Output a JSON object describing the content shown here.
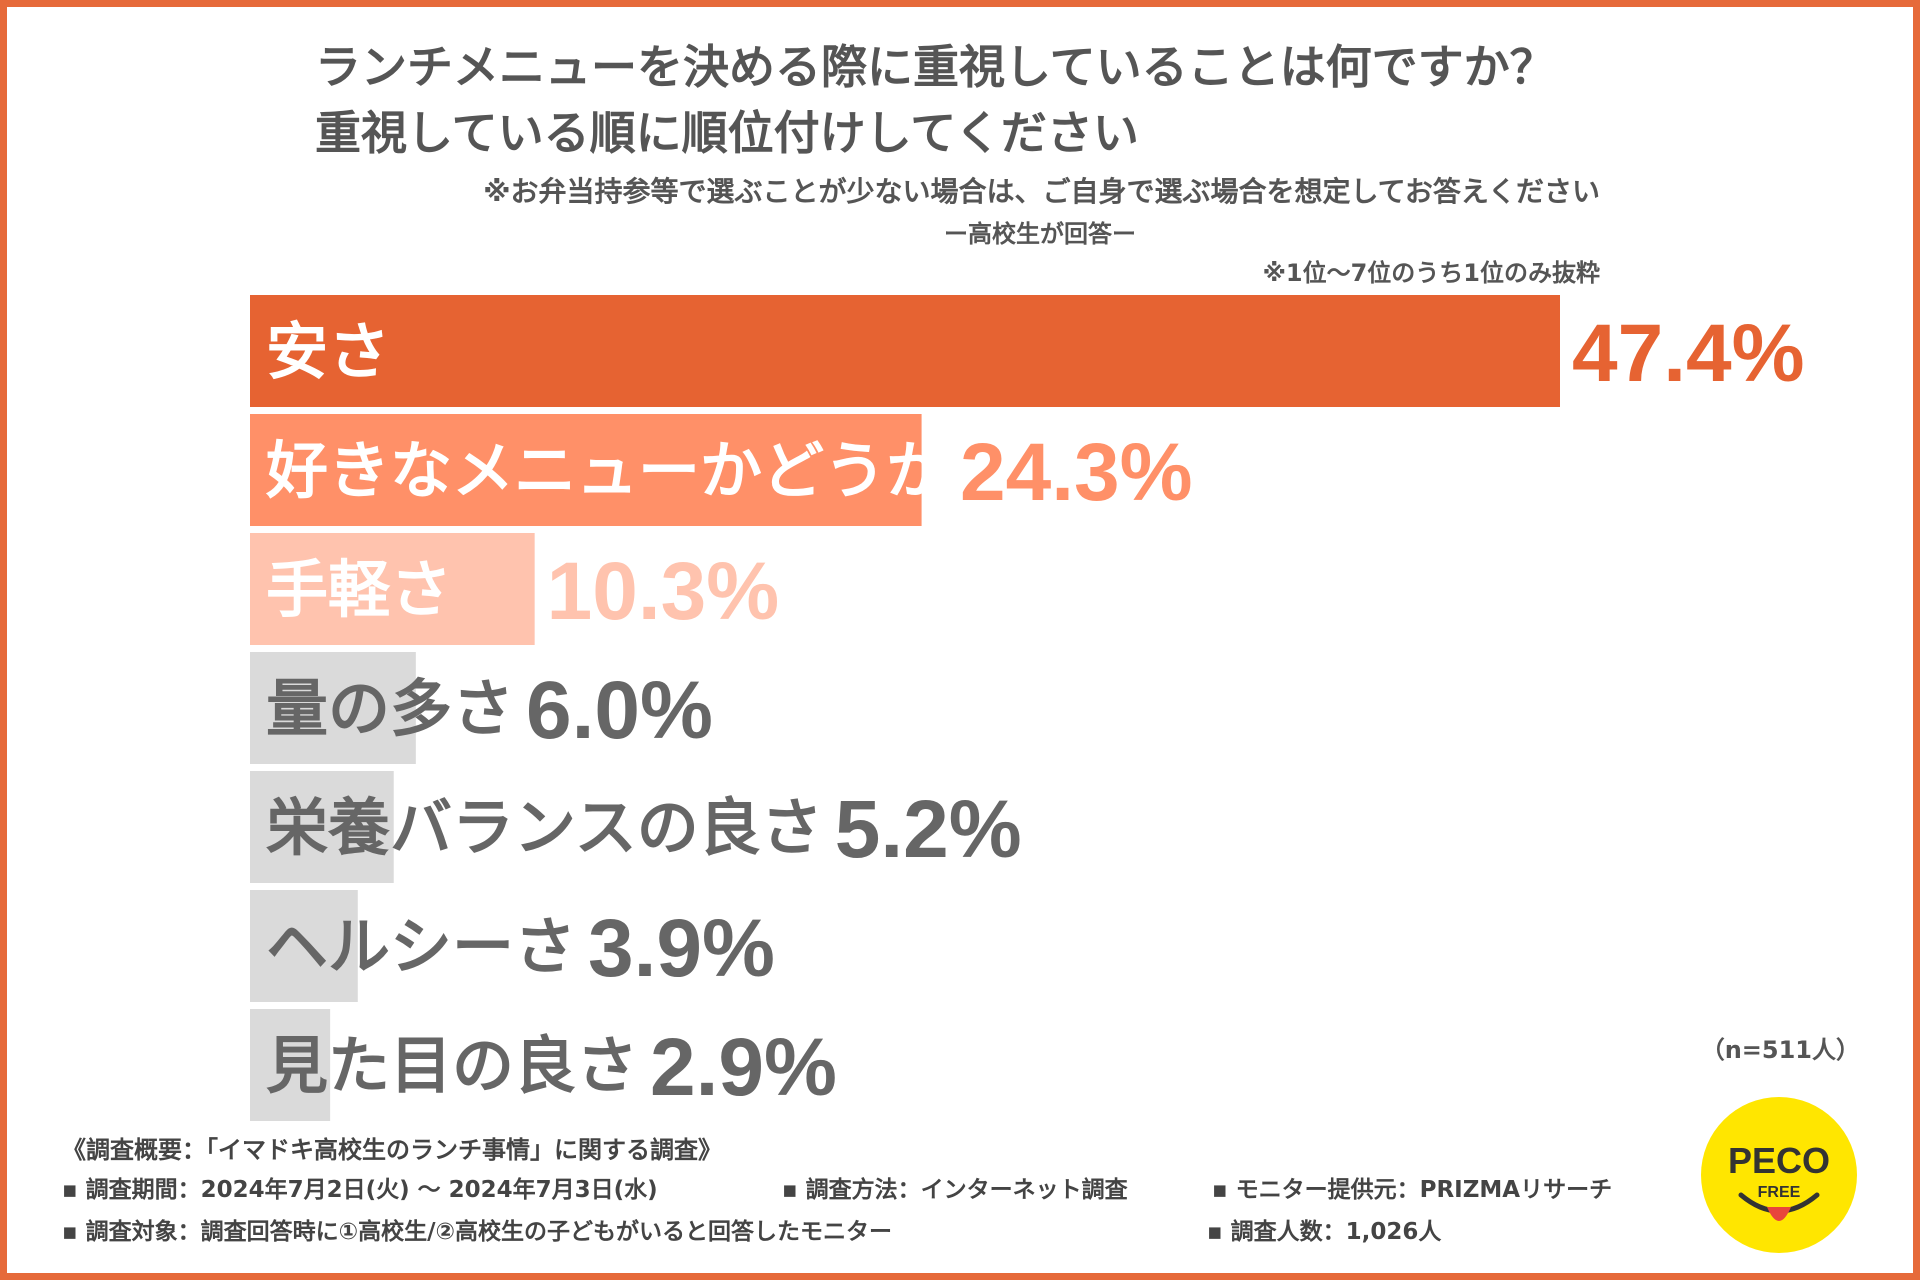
{
  "header": {
    "title_line1": "ランチメニューを決める際に重視していることは何ですか？",
    "title_line2": "重視している順に順位付けしてください",
    "subtitle": "※お弁当持参等で選ぶことが少ない場合は、ご自身で選ぶ場合を想定してお答えください",
    "respondents": "ー高校生が回答ー",
    "note": "※1位〜7位のうち1位のみ抜粋"
  },
  "chart_data": {
    "type": "bar",
    "orientation": "horizontal",
    "categories": [
      "安さ",
      "好きなメニューかどうか",
      "手軽さ",
      "量の多さ",
      "栄養バランスの良さ",
      "ヘルシーさ",
      "見た目の良さ"
    ],
    "values": [
      47.4,
      24.3,
      10.3,
      6.0,
      5.2,
      3.9,
      2.9
    ],
    "value_labels": [
      "47.4%",
      "24.3%",
      "10.3%",
      "6.0%",
      "5.2%",
      "3.9%",
      "2.9%"
    ],
    "unit": "%",
    "bar_colors": [
      "#E66332",
      "#FF9068",
      "#FFC3AE",
      "#DADADA",
      "#DADADA",
      "#DADADA",
      "#DADADA"
    ],
    "label_colors": [
      "#FFFFFF",
      "#FFFFFF",
      "#FFFFFF",
      "#666666",
      "#666666",
      "#666666",
      "#666666"
    ],
    "value_colors": [
      "#E66332",
      "#FF9068",
      "#FFC3AE",
      "#666666",
      "#666666",
      "#666666",
      "#666666"
    ],
    "grid": false,
    "legend": "none"
  },
  "sample_size": "（n=511人）",
  "footer": {
    "overview": "《調査概要：「イマドキ高校生のランチ事情」に関する調査》",
    "period": "▪ 調査期間：2024年7月2日(火) 〜 2024年7月3日(水)",
    "method": "▪ 調査方法：インターネット調査",
    "provider": "▪ モニター提供元：PRIZMAリサーチ",
    "target": "▪ 調査対象：調査回答時に①高校生/②高校生の子どもがいると回答したモニター",
    "count": "▪ 調査人数：1,026人"
  },
  "logo": {
    "text_main": "PECO",
    "text_sub": "FREE",
    "bg_color": "#FFE600",
    "text_color": "#333333",
    "tongue_color": "#E8453C"
  }
}
